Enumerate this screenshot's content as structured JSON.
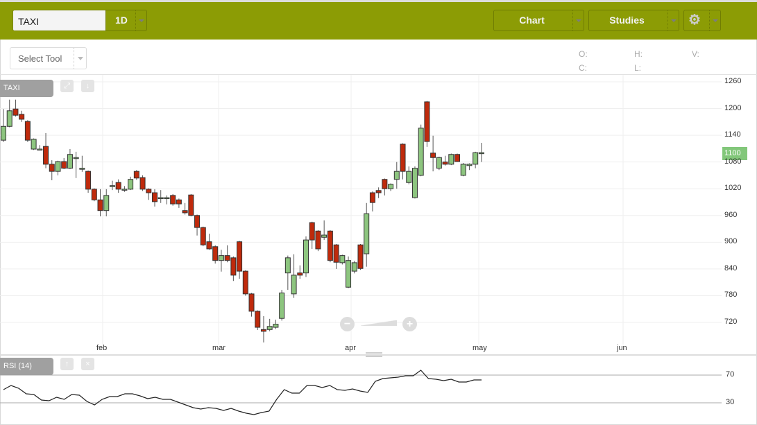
{
  "header": {
    "symbol": "TAXI",
    "interval": "1D",
    "chart_label": "Chart",
    "studies_label": "Studies",
    "settings_icon": "gear-icon",
    "accent": "#8c9c05"
  },
  "toolbar": {
    "select_tool": "Select Tool",
    "o_label": "O:",
    "h_label": "H:",
    "v_label": "V:",
    "c_label": "C:",
    "l_label": "L:"
  },
  "main_panel": {
    "label": "TAXI",
    "expand_icon": "expand-icon",
    "down_icon": "arrow-down-icon"
  },
  "rsi_panel": {
    "label": "RSI (14)",
    "up_icon": "arrow-up-icon",
    "close_icon": "close-icon"
  },
  "zoom": {
    "minus": "−",
    "plus": "+"
  },
  "chart_data": [
    {
      "type": "candlestick",
      "symbol": "TAXI",
      "last_price": "1100",
      "y_ticks": [
        "1260",
        "1200",
        "1140",
        "1080",
        "1020",
        "960",
        "900",
        "840",
        "780",
        "720"
      ],
      "ylim": [
        690,
        1260
      ],
      "x_ticks": [
        "feb",
        "mar",
        "apr",
        "may",
        "jun"
      ],
      "grid": true,
      "up_color": "#8dc57f",
      "down_color": "#bf2a0c",
      "candles": [
        [
          1129,
          1199,
          1125,
          1160
        ],
        [
          1160,
          1220,
          1158,
          1195
        ],
        [
          1199,
          1220,
          1182,
          1185
        ],
        [
          1187,
          1195,
          1170,
          1176
        ],
        [
          1171,
          1174,
          1125,
          1129
        ],
        [
          1109,
          1133,
          1107,
          1131
        ],
        [
          1109,
          1118,
          1106,
          1109
        ],
        [
          1115,
          1145,
          1066,
          1075
        ],
        [
          1075,
          1084,
          1039,
          1059
        ],
        [
          1059,
          1083,
          1050,
          1081
        ],
        [
          1081,
          1089,
          1064,
          1066
        ],
        [
          1066,
          1109,
          1064,
          1097
        ],
        [
          1090,
          1103,
          1044,
          1090
        ],
        [
          1066,
          1094,
          1058,
          1066
        ],
        [
          1059,
          1061,
          1011,
          1019
        ],
        [
          1019,
          1021,
          992,
          995
        ],
        [
          995,
          1019,
          958,
          971
        ],
        [
          971,
          1019,
          958,
          1005
        ],
        [
          1027,
          1038,
          1017,
          1027
        ],
        [
          1034,
          1041,
          1011,
          1019
        ],
        [
          1019,
          1026,
          1013,
          1019
        ],
        [
          1019,
          1047,
          1017,
          1041
        ],
        [
          1059,
          1062,
          1040,
          1044
        ],
        [
          1045,
          1050,
          1015,
          1019
        ],
        [
          1019,
          1021,
          995,
          1011
        ],
        [
          1011,
          1019,
          980,
          991
        ],
        [
          1000,
          1017,
          988,
          1000
        ],
        [
          1000,
          1005,
          985,
          1000
        ],
        [
          1005,
          1008,
          982,
          986
        ],
        [
          995,
          998,
          977,
          986
        ],
        [
          971,
          988,
          962,
          966
        ],
        [
          1006,
          1008,
          958,
          960
        ],
        [
          960,
          962,
          915,
          933
        ],
        [
          933,
          935,
          891,
          894
        ],
        [
          901,
          919,
          883,
          885
        ],
        [
          890,
          893,
          852,
          859
        ],
        [
          859,
          883,
          834,
          870
        ],
        [
          870,
          893,
          855,
          859
        ],
        [
          865,
          868,
          813,
          826
        ],
        [
          901,
          903,
          818,
          835
        ],
        [
          835,
          837,
          780,
          784
        ],
        [
          784,
          786,
          733,
          745
        ],
        [
          745,
          747,
          703,
          709
        ],
        [
          704,
          734,
          675,
          700
        ],
        [
          704,
          728,
          700,
          711
        ],
        [
          709,
          726,
          705,
          716
        ],
        [
          729,
          793,
          724,
          786
        ],
        [
          831,
          870,
          793,
          865
        ],
        [
          784,
          873,
          775,
          826
        ],
        [
          831,
          848,
          818,
          826
        ],
        [
          831,
          913,
          822,
          905
        ],
        [
          944,
          946,
          885,
          905
        ],
        [
          925,
          927,
          880,
          885
        ],
        [
          911,
          949,
          905,
          916
        ],
        [
          925,
          927,
          855,
          859
        ],
        [
          894,
          896,
          840,
          855
        ],
        [
          854,
          872,
          850,
          870
        ],
        [
          799,
          868,
          797,
          859
        ],
        [
          835,
          858,
          830,
          854
        ],
        [
          894,
          896,
          838,
          841
        ],
        [
          874,
          988,
          845,
          964
        ],
        [
          1011,
          1014,
          969,
          989
        ],
        [
          1016,
          1023,
          999,
          1011
        ],
        [
          1041,
          1043,
          1005,
          1020
        ],
        [
          1020,
          1032,
          1015,
          1030
        ],
        [
          1041,
          1080,
          1020,
          1059
        ],
        [
          1120,
          1122,
          1041,
          1059
        ],
        [
          1034,
          1070,
          1030,
          1059
        ],
        [
          1000,
          1070,
          998,
          1066
        ],
        [
          1050,
          1164,
          1048,
          1156
        ],
        [
          1215,
          1217,
          1114,
          1126
        ],
        [
          1100,
          1139,
          1059,
          1090
        ],
        [
          1066,
          1092,
          1062,
          1090
        ],
        [
          1080,
          1094,
          1072,
          1075
        ],
        [
          1075,
          1099,
          1073,
          1097
        ],
        [
          1097,
          1099,
          1080,
          1081
        ],
        [
          1050,
          1078,
          1048,
          1075
        ],
        [
          1072,
          1077,
          1062,
          1075
        ],
        [
          1075,
          1103,
          1066,
          1101
        ],
        [
          1101,
          1123,
          1080,
          1101
        ]
      ]
    },
    {
      "type": "line",
      "title": "RSI (14)",
      "y_ticks": [
        "70",
        "30"
      ],
      "values": [
        49,
        55,
        51,
        43,
        42,
        34,
        33,
        38,
        35,
        42,
        41,
        32,
        27,
        35,
        39,
        39,
        43,
        43,
        40,
        36,
        38,
        35,
        35,
        31,
        27,
        23,
        21,
        23,
        22,
        19,
        22,
        18,
        15,
        13,
        16,
        18,
        35,
        49,
        44,
        44,
        55,
        55,
        52,
        55,
        49,
        48,
        50,
        47,
        45,
        61,
        65,
        66,
        67,
        69,
        69,
        77,
        65,
        64,
        62,
        64,
        60,
        60,
        63,
        63
      ]
    }
  ]
}
